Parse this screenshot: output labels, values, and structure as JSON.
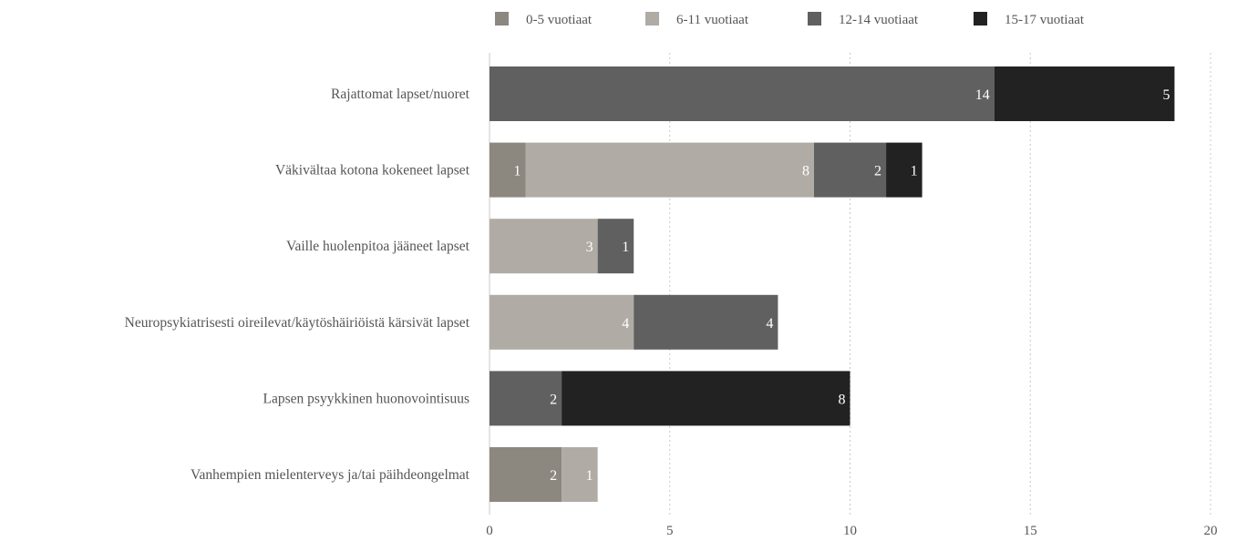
{
  "chart_data": {
    "type": "bar",
    "orientation": "horizontal",
    "stacked": true,
    "title": "",
    "xlabel": "",
    "ylabel": "",
    "xlim": [
      0,
      20
    ],
    "x_ticks": [
      0,
      5,
      10,
      15,
      20
    ],
    "grid": true,
    "legend_position": "top",
    "categories": [
      "Rajattomat lapset/nuoret",
      "Väkivältaa kotona kokeneet lapset",
      "Vaille huolenpitoa jääneet lapset",
      "Neuropsykiatrisesti oireilevat/käytöshäiriöistä kärsivät lapset",
      "Lapsen psyykkinen huonovointisuus",
      "Vanhempien mielenterveys ja/tai päihdeongelmat"
    ],
    "series": [
      {
        "name": "0-5 vuotiaat",
        "color": "#8c877f",
        "values": [
          0,
          1,
          0,
          0,
          0,
          2
        ]
      },
      {
        "name": "6-11 vuotiaat",
        "color": "#b0aca5",
        "values": [
          0,
          8,
          3,
          4,
          0,
          1
        ]
      },
      {
        "name": "12-14 vuotiaat",
        "color": "#606060",
        "values": [
          14,
          2,
          1,
          4,
          2,
          0
        ]
      },
      {
        "name": "15-17 vuotiaat",
        "color": "#222222",
        "values": [
          5,
          1,
          0,
          0,
          8,
          0
        ]
      }
    ]
  }
}
